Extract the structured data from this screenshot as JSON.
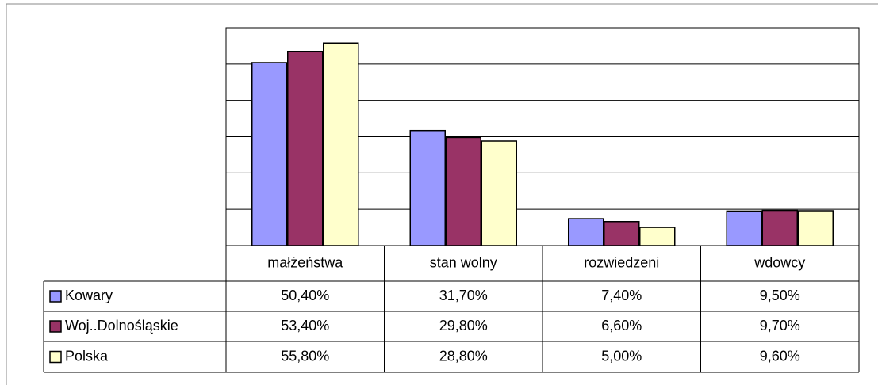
{
  "chart_data": {
    "type": "bar",
    "categories": [
      "małżeństwa",
      "stan wolny",
      "rozwiedzeni",
      "wdowcy"
    ],
    "series": [
      {
        "name": "Kowary",
        "color": "#9999ff",
        "values": [
          50.4,
          31.7,
          7.4,
          9.5
        ],
        "value_labels": [
          "50,40%",
          "31,70%",
          "7,40%",
          "9,50%"
        ]
      },
      {
        "name": "Woj..Dolnośląskie",
        "color": "#993366",
        "values": [
          53.4,
          29.8,
          6.6,
          9.7
        ],
        "value_labels": [
          "53,40%",
          "29,80%",
          "6,60%",
          "9,70%"
        ]
      },
      {
        "name": "Polska",
        "color": "#ffffcc",
        "values": [
          55.8,
          28.8,
          5.0,
          9.6
        ],
        "value_labels": [
          "55,80%",
          "28,80%",
          "5,00%",
          "9,60%"
        ]
      }
    ],
    "ylim": [
      0,
      60
    ],
    "yticks": [
      0,
      10,
      20,
      30,
      40,
      50,
      60
    ],
    "grid": true
  }
}
